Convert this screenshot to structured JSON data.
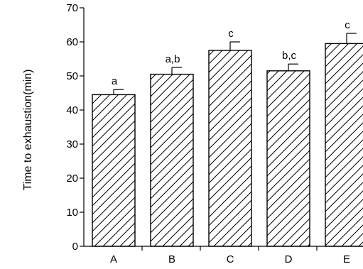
{
  "chart_data": {
    "type": "bar",
    "title": "",
    "xlabel": "",
    "ylabel": "Time to exhaustion(min)",
    "ylim": [
      0,
      70
    ],
    "yticks": [
      0,
      10,
      20,
      30,
      40,
      50,
      60,
      70
    ],
    "grid": false,
    "legend": "none",
    "bar_fill": "diagonal-hatch",
    "categories": [
      "A",
      "B",
      "C",
      "D",
      "E"
    ],
    "values": [
      44.5,
      50.5,
      57.5,
      51.5,
      59.5
    ],
    "errors": [
      1.5,
      2.0,
      2.5,
      2.0,
      3.0
    ],
    "significance": [
      "a",
      "a,b",
      "c",
      "b,c",
      "c"
    ]
  }
}
